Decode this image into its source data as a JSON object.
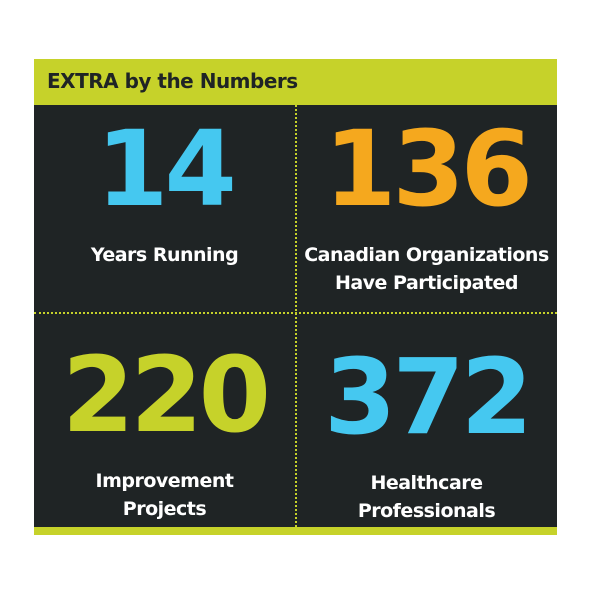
{
  "header": {
    "title": "EXTRA by the Numbers"
  },
  "colors": {
    "accent_green": "#c6d22a",
    "blue": "#45c8f0",
    "orange": "#f5a81e",
    "background": "#1f2425"
  },
  "stats": [
    {
      "value": "14",
      "label_line1": "Years Running",
      "label_line2": "",
      "color": "#45c8f0"
    },
    {
      "value": "136",
      "label_line1": "Canadian Organizations",
      "label_line2": "Have Participated",
      "color": "#f5a81e"
    },
    {
      "value": "220",
      "label_line1": "Improvement",
      "label_line2": "Projects",
      "color": "#c6d22a"
    },
    {
      "value": "372",
      "label_line1": "Healthcare",
      "label_line2": "Professionals",
      "color": "#45c8f0"
    }
  ]
}
